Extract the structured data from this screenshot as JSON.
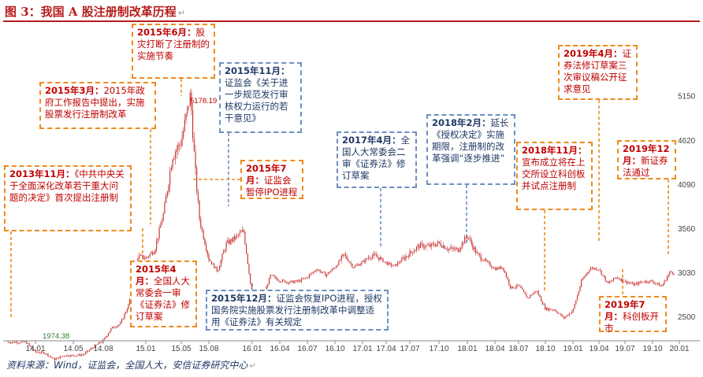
{
  "figure": {
    "title": "图 3：我国 A 股注册制改革历程",
    "source": "资料来源：Wind，证监会，全国人大，安信证券研究中心"
  },
  "colors": {
    "candle": "#c62828",
    "red_box": "#ef8a1c",
    "blue_box": "#6d8fbf",
    "red_text": "#c00000",
    "blue_text": "#1f3864"
  },
  "chart_data": {
    "type": "line",
    "title": "",
    "xlabel": "",
    "ylabel": "",
    "x_ticks": [
      "14.01",
      "14.05",
      "14.08",
      "15.01",
      "15.05",
      "15.08",
      "16.01",
      "16.04",
      "16.07",
      "16.10",
      "17.01",
      "17.04",
      "17.07",
      "17.10",
      "18.01",
      "18.04",
      "18.07",
      "18.10",
      "19.01",
      "19.04",
      "19.07",
      "19.10",
      "20.01"
    ],
    "y_ticks": [
      "2500",
      "3030",
      "3560",
      "4090",
      "4620",
      "5150"
    ],
    "ylim": [
      1800,
      5450
    ],
    "grid": false,
    "annotated_values": [
      {
        "label": "5178.19",
        "date": "15.06",
        "value": 5178.19
      },
      {
        "label": "1974.38",
        "date": "14.03",
        "value": 1974.38
      }
    ],
    "series": [
      {
        "points": [
          [
            "13.12",
            2200
          ],
          [
            "14.01",
            2080
          ],
          [
            "14.02",
            2070
          ],
          [
            "14.03",
            1990
          ],
          [
            "14.04",
            2040
          ],
          [
            "14.05",
            2040
          ],
          [
            "14.06",
            2050
          ],
          [
            "14.07",
            2140
          ],
          [
            "14.08",
            2220
          ],
          [
            "14.09",
            2370
          ],
          [
            "14.10",
            2420
          ],
          [
            "14.11",
            2650
          ],
          [
            "14.12",
            3230
          ],
          [
            "15.01",
            3210
          ],
          [
            "15.02",
            3310
          ],
          [
            "15.03",
            3750
          ],
          [
            "15.04",
            4440
          ],
          [
            "15.05",
            4610
          ],
          [
            "15.06",
            5178
          ],
          [
            "15.06b",
            4280
          ],
          [
            "15.07",
            3660
          ],
          [
            "15.08",
            3200
          ],
          [
            "15.09",
            3050
          ],
          [
            "15.10",
            3380
          ],
          [
            "15.11",
            3450
          ],
          [
            "15.12",
            3540
          ],
          [
            "16.01",
            2740
          ],
          [
            "16.02",
            2690
          ],
          [
            "16.03",
            3000
          ],
          [
            "16.04",
            2940
          ],
          [
            "16.05",
            2920
          ],
          [
            "16.06",
            2930
          ],
          [
            "16.07",
            2980
          ],
          [
            "16.08",
            3080
          ],
          [
            "16.09",
            3005
          ],
          [
            "16.10",
            3100
          ],
          [
            "16.11",
            3250
          ],
          [
            "16.12",
            3100
          ],
          [
            "17.01",
            3160
          ],
          [
            "17.02",
            3240
          ],
          [
            "17.03",
            3220
          ],
          [
            "17.04",
            3150
          ],
          [
            "17.05",
            3110
          ],
          [
            "17.06",
            3190
          ],
          [
            "17.07",
            3270
          ],
          [
            "17.08",
            3360
          ],
          [
            "17.09",
            3350
          ],
          [
            "17.10",
            3390
          ],
          [
            "17.11",
            3320
          ],
          [
            "17.12",
            3310
          ],
          [
            "18.01",
            3480
          ],
          [
            "18.02",
            3260
          ],
          [
            "18.03",
            3170
          ],
          [
            "18.04",
            3080
          ],
          [
            "18.05",
            3100
          ],
          [
            "18.06",
            2850
          ],
          [
            "18.07",
            2880
          ],
          [
            "18.08",
            2730
          ],
          [
            "18.09",
            2820
          ],
          [
            "18.10",
            2600
          ],
          [
            "18.11",
            2590
          ],
          [
            "18.12",
            2490
          ],
          [
            "19.01",
            2580
          ],
          [
            "19.02",
            2940
          ],
          [
            "19.03",
            3090
          ],
          [
            "19.04",
            3080
          ],
          [
            "19.05",
            2900
          ],
          [
            "19.06",
            2980
          ],
          [
            "19.07",
            2930
          ],
          [
            "19.08",
            2890
          ],
          [
            "19.09",
            2930
          ],
          [
            "19.10",
            2930
          ],
          [
            "19.11",
            2870
          ],
          [
            "19.12",
            3050
          ],
          [
            "20.01",
            3000
          ]
        ]
      }
    ]
  },
  "annotations": [
    {
      "id": "a1",
      "style": "red",
      "date": "2013年11月：",
      "text": "《中共中央关于全面深化改革若干重大问题的决定》首次提出注册制"
    },
    {
      "id": "a2",
      "style": "red",
      "date": "2015年3月：",
      "text": "2015年政府工作报告中提出，实施股票发行注册制改革"
    },
    {
      "id": "a3",
      "style": "red",
      "date": "2015年6月：",
      "text": "股灾打断了注册制的实施节奏"
    },
    {
      "id": "a4",
      "style": "red",
      "date": "2015年4月：",
      "text": "全国人大常委会一审《证券法》修订草案"
    },
    {
      "id": "a5",
      "style": "blue",
      "date": "2015年11月：",
      "text": "证监会《关于进一步规范发行审核权力运行的若干意见》"
    },
    {
      "id": "a6",
      "style": "red",
      "date": "2015年7月：",
      "text": "证监会暂停IPO进程"
    },
    {
      "id": "a7",
      "style": "blue",
      "date": "2015年12月：",
      "text": "证监会恢复IPO进程，授权国务院实施股票发行注册制改革中调整适用《证券法》有关规定"
    },
    {
      "id": "a8",
      "style": "blue",
      "date": "2017年4月：",
      "text": "全国人大常委会二审《证券法》修订草案"
    },
    {
      "id": "a9",
      "style": "blue",
      "date": "2018年2月：",
      "text": "延长《授权决定》实施期限，注册制的改革强调“逐步推进”"
    },
    {
      "id": "a10",
      "style": "red",
      "date": "2018年11月：",
      "text": "宣布成立将在上交所设立科创板并试点注册制"
    },
    {
      "id": "a11",
      "style": "red",
      "date": "2019年4月：",
      "text": "证券法修订草案三次审议稿公开征求意见"
    },
    {
      "id": "a12",
      "style": "red",
      "date": "2019年12月：",
      "text": "新证券法通过"
    },
    {
      "id": "a13",
      "style": "red",
      "date": "2019年7月：",
      "text": "科创板开市"
    }
  ]
}
